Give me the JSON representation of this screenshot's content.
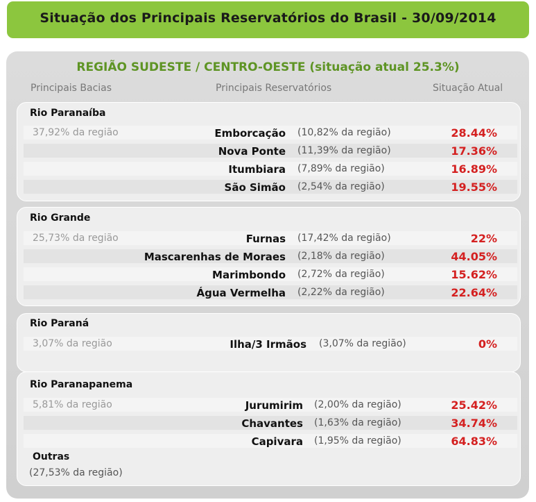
{
  "title": "Situação dos Principais Reservatórios do Brasil - 30/09/2014",
  "region": {
    "title": "REGIÃO SUDESTE / CENTRO-OESTE (situação atual 25.3%)",
    "columns": {
      "basins": "Principais Bacias",
      "reservoirs": "Principais Reservatórios",
      "status": "Situação Atual"
    },
    "basins": [
      {
        "name": "Rio Paranaíba",
        "share": "37,92% da região",
        "reservoirs": [
          {
            "name": "Emborcação",
            "share": "(10,82% da região)",
            "status": "28.44%"
          },
          {
            "name": "Nova Ponte",
            "share": "(11,39% da região)",
            "status": "17.36%"
          },
          {
            "name": "Itumbiara",
            "share": "(7,89% da região)",
            "status": "16.89%"
          },
          {
            "name": "São Simão",
            "share": "(2,54% da região)",
            "status": "19.55%"
          }
        ]
      },
      {
        "name": "Rio Grande",
        "share": "25,73% da região",
        "reservoirs": [
          {
            "name": "Furnas",
            "share": "(17,42% da região)",
            "status": "22%"
          },
          {
            "name": "Mascarenhas de Moraes",
            "share": "(2,18% da região)",
            "status": "44.05%"
          },
          {
            "name": "Marimbondo",
            "share": "(2,72% da região)",
            "status": "15.62%"
          },
          {
            "name": "Água Vermelha",
            "share": "(2,22% da região)",
            "status": "22.64%"
          }
        ]
      },
      {
        "name": "Rio Paraná",
        "share": "3,07% da região",
        "reservoirs": [
          {
            "name": "Ilha/3 Irmãos",
            "share": "(3,07% da região)",
            "status": "0%"
          }
        ]
      },
      {
        "name": "Rio Paranapanema",
        "share": "5,81% da região",
        "reservoirs": [
          {
            "name": "Jurumirim",
            "share": "(2,00% da região)",
            "status": "25.42%"
          },
          {
            "name": "Chavantes",
            "share": "(1,63% da região)",
            "status": "34.74%"
          },
          {
            "name": "Capivara",
            "share": "(1,95% da região)",
            "status": "64.83%"
          }
        ]
      }
    ],
    "others": {
      "name": "Outras",
      "share": "(27,53% da região)"
    }
  }
}
